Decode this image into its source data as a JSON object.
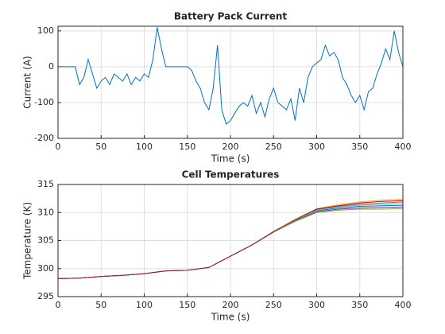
{
  "chart_data": [
    {
      "type": "line",
      "title": "Battery Pack Current",
      "xlabel": "Time (s)",
      "ylabel": "Current (A)",
      "x": [
        0,
        5,
        10,
        15,
        20,
        25,
        30,
        35,
        40,
        45,
        50,
        55,
        60,
        65,
        70,
        75,
        80,
        85,
        90,
        95,
        100,
        105,
        110,
        115,
        120,
        125,
        130,
        135,
        140,
        145,
        150,
        155,
        160,
        165,
        170,
        175,
        180,
        185,
        190,
        195,
        200,
        205,
        210,
        215,
        220,
        225,
        230,
        235,
        240,
        245,
        250,
        255,
        260,
        265,
        270,
        275,
        280,
        285,
        290,
        295,
        300,
        305,
        310,
        315,
        320,
        325,
        330,
        335,
        340,
        345,
        350,
        355,
        360,
        365,
        370,
        375,
        380,
        385,
        390,
        395,
        400
      ],
      "series": [
        {
          "color": "#0072bd",
          "values": [
            0,
            0,
            0,
            0,
            0,
            -50,
            -30,
            20,
            -20,
            -60,
            -40,
            -30,
            -50,
            -20,
            -30,
            -40,
            -20,
            -50,
            -30,
            -40,
            -20,
            -30,
            20,
            110,
            50,
            0,
            0,
            0,
            0,
            0,
            0,
            -10,
            -40,
            -60,
            -100,
            -120,
            -60,
            60,
            -120,
            -160,
            -150,
            -130,
            -110,
            -100,
            -110,
            -80,
            -130,
            -100,
            -140,
            -90,
            -60,
            -100,
            -110,
            -120,
            -90,
            -150,
            -60,
            -100,
            -30,
            0,
            10,
            20,
            60,
            30,
            40,
            20,
            -30,
            -50,
            -80,
            -100,
            -80,
            -120,
            -70,
            -60,
            -20,
            10,
            50,
            20,
            100,
            40,
            0
          ]
        }
      ],
      "xlim": [
        0,
        400
      ],
      "xticks": [
        0,
        50,
        100,
        150,
        200,
        250,
        300,
        350,
        400
      ],
      "ylim": [
        -200,
        113
      ],
      "yticks": [
        -200,
        -100,
        0,
        100
      ],
      "grid": true
    },
    {
      "type": "line",
      "title": "Cell Temperatures",
      "xlabel": "Time (s)",
      "ylabel": "Temperature (K)",
      "x": [
        0,
        25,
        50,
        75,
        100,
        125,
        150,
        175,
        200,
        225,
        250,
        275,
        300,
        325,
        350,
        375,
        400
      ],
      "series": [
        {
          "color": "#0072bd",
          "values": [
            298.2,
            298.3,
            298.6,
            298.8,
            299.1,
            299.6,
            299.7,
            300.2,
            302.2,
            304.2,
            306.6,
            308.6,
            310.3,
            310.8,
            311.1,
            311.2,
            311.3
          ]
        },
        {
          "color": "#d95319",
          "values": [
            298.2,
            298.3,
            298.6,
            298.8,
            299.1,
            299.6,
            299.7,
            300.2,
            302.2,
            304.2,
            306.6,
            308.7,
            310.5,
            311.1,
            311.5,
            311.7,
            311.9
          ]
        },
        {
          "color": "#edb120",
          "values": [
            298.2,
            298.3,
            298.6,
            298.8,
            299.1,
            299.6,
            299.7,
            300.2,
            302.2,
            304.2,
            306.6,
            308.8,
            310.7,
            311.4,
            311.9,
            312.2,
            312.4
          ]
        },
        {
          "color": "#7e2f8e",
          "values": [
            298.2,
            298.3,
            298.6,
            298.8,
            299.1,
            299.6,
            299.7,
            300.2,
            302.2,
            304.2,
            306.5,
            308.5,
            310.1,
            310.6,
            310.8,
            310.9,
            311.0
          ]
        },
        {
          "color": "#77ac30",
          "values": [
            298.2,
            298.3,
            298.6,
            298.8,
            299.1,
            299.6,
            299.7,
            300.2,
            302.2,
            304.2,
            306.5,
            308.4,
            310.0,
            310.4,
            310.6,
            310.6,
            310.7
          ]
        },
        {
          "color": "#4dbeee",
          "values": [
            298.2,
            298.3,
            298.6,
            298.8,
            299.1,
            299.6,
            299.7,
            300.2,
            302.2,
            304.2,
            306.6,
            308.6,
            310.4,
            311.0,
            311.3,
            311.5,
            311.6
          ]
        },
        {
          "color": "#a2142f",
          "values": [
            298.2,
            298.3,
            298.6,
            298.8,
            299.1,
            299.6,
            299.7,
            300.2,
            302.2,
            304.2,
            306.6,
            308.7,
            310.6,
            311.2,
            311.7,
            312.0,
            312.1
          ]
        }
      ],
      "xlim": [
        0,
        400
      ],
      "xticks": [
        0,
        50,
        100,
        150,
        200,
        250,
        300,
        350,
        400
      ],
      "ylim": [
        295,
        315
      ],
      "yticks": [
        295,
        300,
        305,
        310,
        315
      ],
      "grid": true
    }
  ]
}
